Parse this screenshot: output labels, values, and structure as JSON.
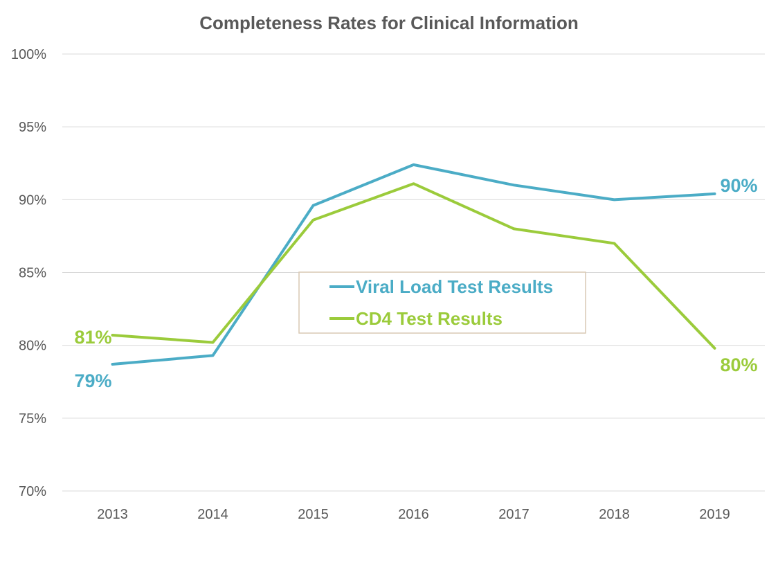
{
  "chart_data": {
    "type": "line",
    "title": "Completeness Rates for Clinical Information",
    "categories": [
      "2013",
      "2014",
      "2015",
      "2016",
      "2017",
      "2018",
      "2019"
    ],
    "ylim": [
      70,
      100
    ],
    "yticks": [
      "70%",
      "75%",
      "80%",
      "85%",
      "90%",
      "95%",
      "100%"
    ],
    "grid": true,
    "legend_position": "center",
    "series": [
      {
        "name": "Viral Load Test Results",
        "color": "#4bacc6",
        "values": [
          78.7,
          79.3,
          89.6,
          92.4,
          91.0,
          90.0,
          90.4
        ],
        "labels": [
          {
            "index": 0,
            "text": "79%"
          },
          {
            "index": 6,
            "text": "90%"
          }
        ]
      },
      {
        "name": "CD4 Test Results",
        "color": "#9bcb3b",
        "values": [
          80.7,
          80.2,
          88.6,
          91.1,
          88.0,
          87.0,
          79.8
        ],
        "labels": [
          {
            "index": 0,
            "text": "81%"
          },
          {
            "index": 6,
            "text": "80%"
          }
        ]
      }
    ]
  }
}
